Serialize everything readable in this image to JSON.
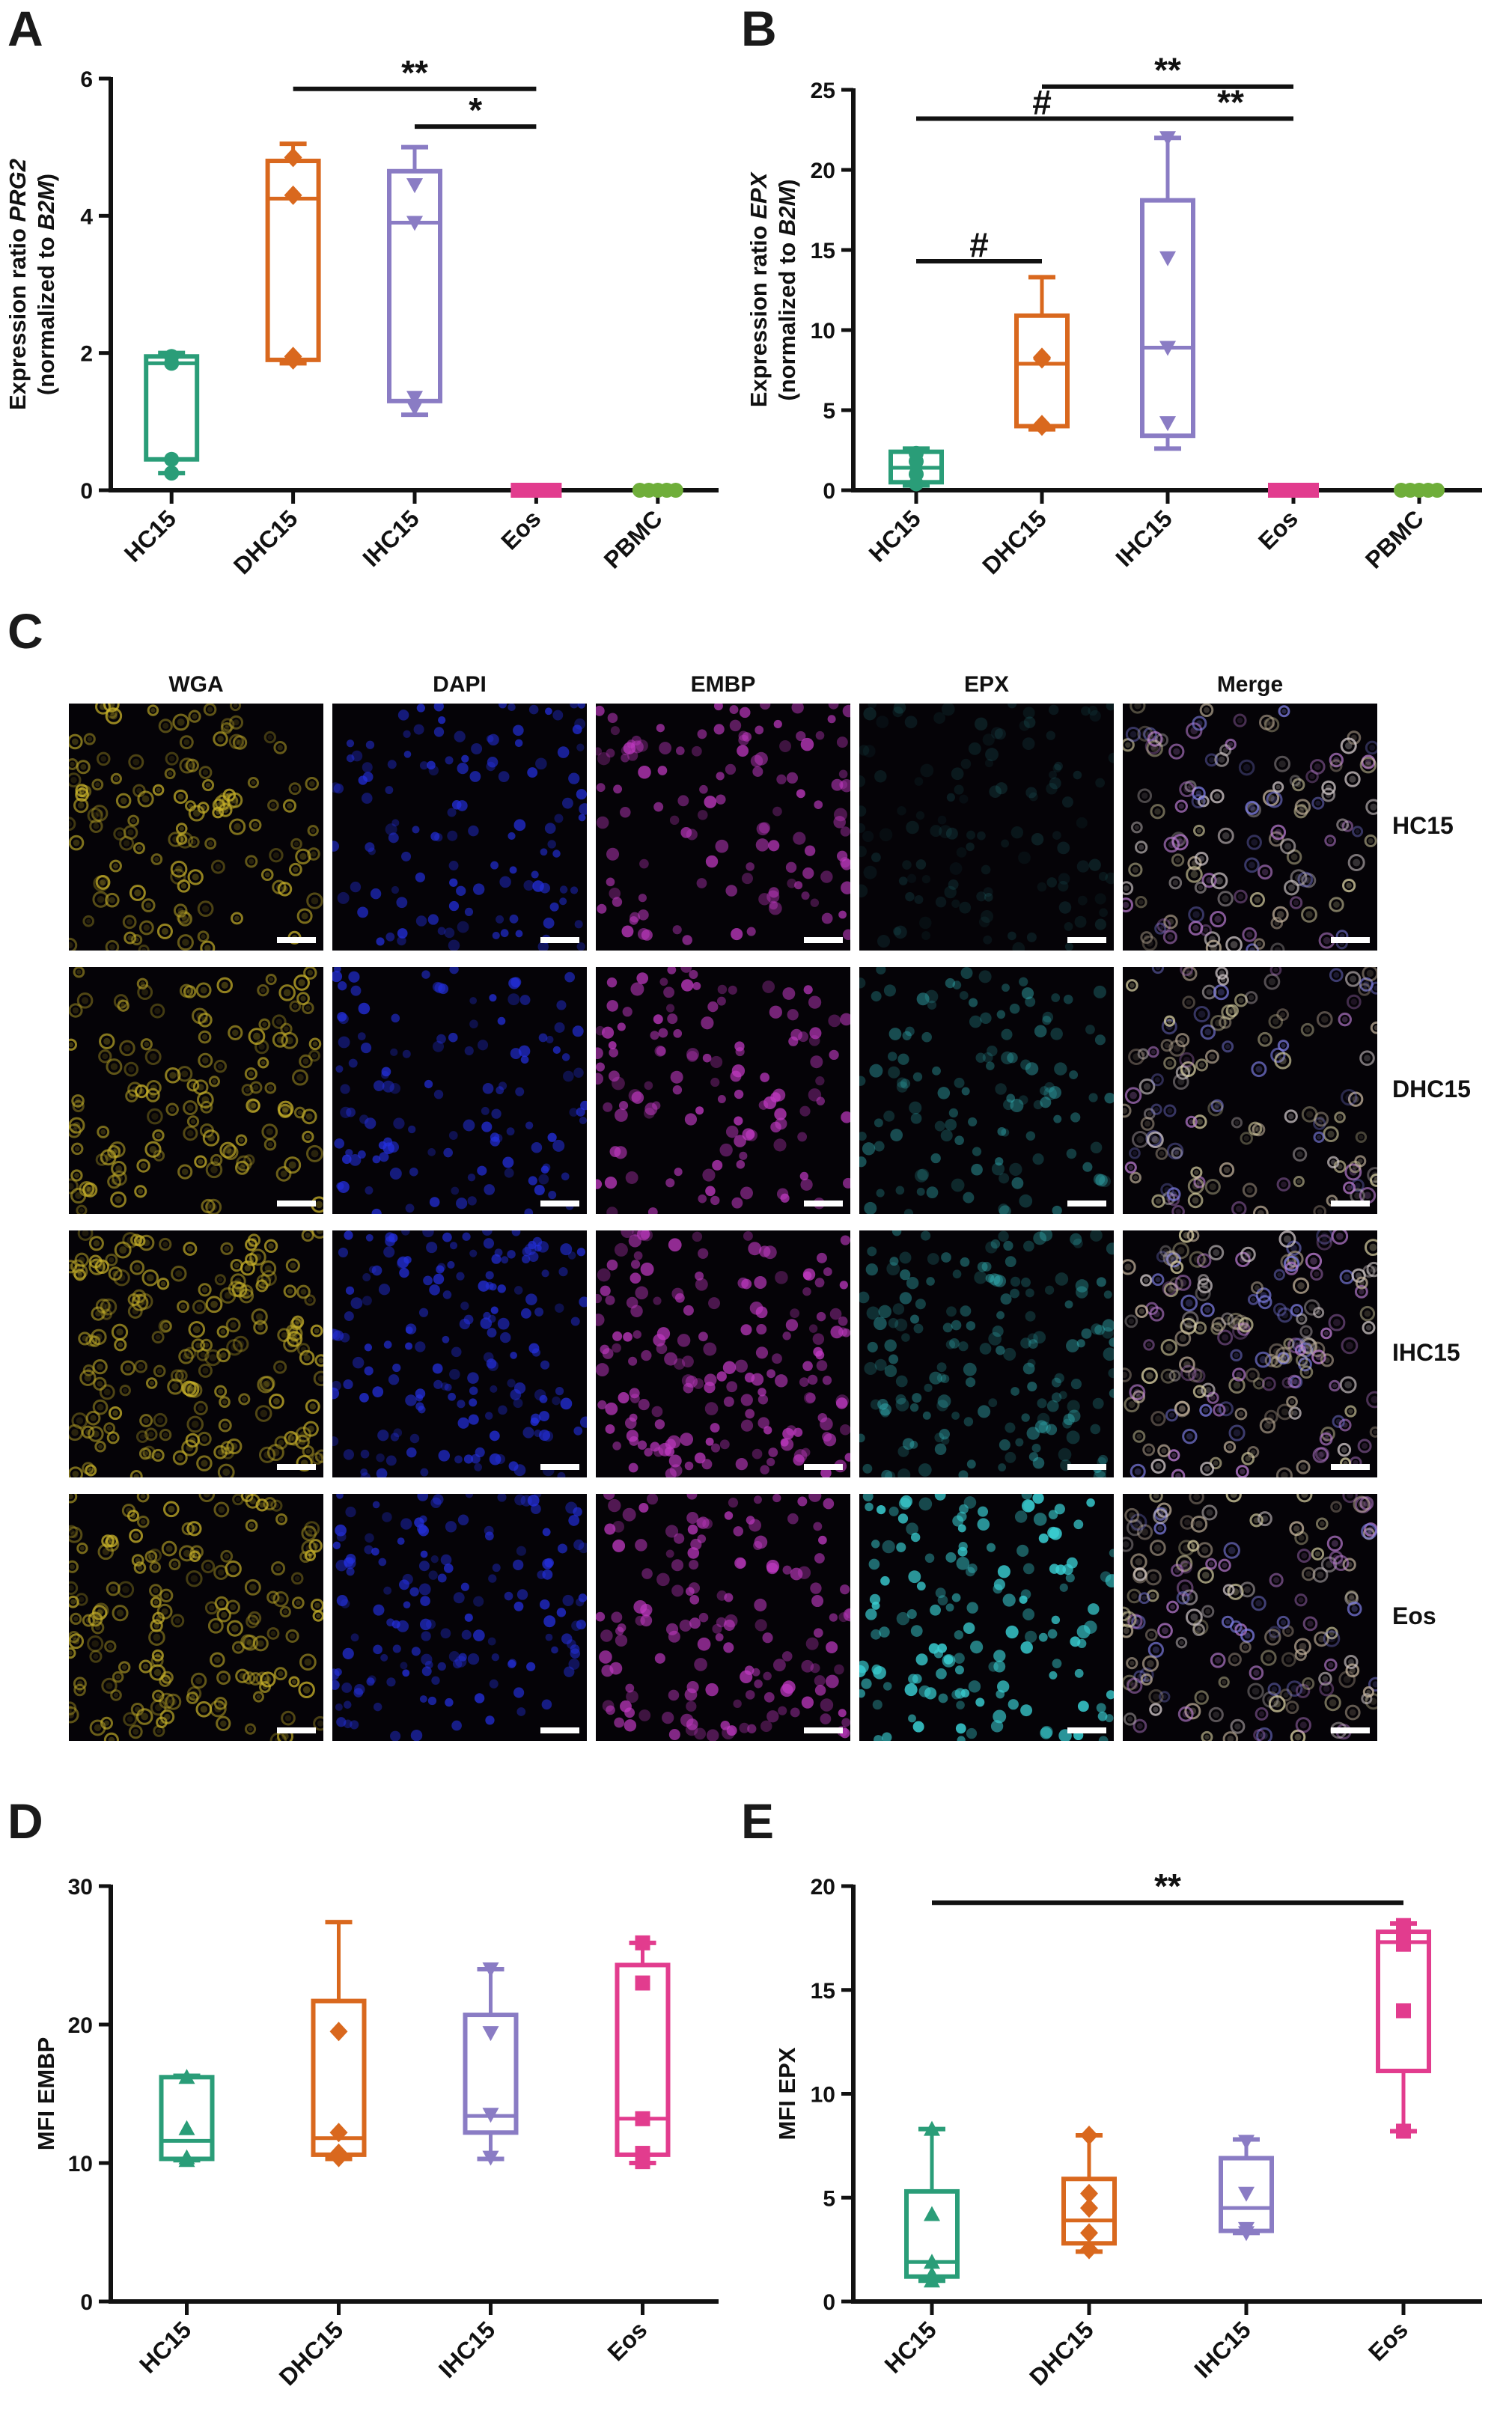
{
  "panels": {
    "A": {
      "letter": "A"
    },
    "B": {
      "letter": "B"
    },
    "C": {
      "letter": "C"
    },
    "D": {
      "letter": "D"
    },
    "E": {
      "letter": "E"
    }
  },
  "colors": {
    "HC15": "#2a9d78",
    "DHC15": "#d9681e",
    "IHC15": "#8a7cc4",
    "Eos": "#e23c8e",
    "PBMC": "#6fae3a",
    "WGA": "#c9b32a",
    "DAPI": "#2430e0",
    "EMBP": "#c23ac4",
    "EPX": "#3ad0d4",
    "Merge": "#d8cfd0"
  },
  "chart_data": [
    {
      "id": "A",
      "type": "box",
      "ylabel_line1_prefix": "Expression ratio ",
      "ylabel_line1_italic": "PRG2",
      "ylabel_line2_prefix": "(normalized to ",
      "ylabel_line2_italic": "B2M",
      "ylabel_line2_suffix": ")",
      "ylim": [
        0,
        6
      ],
      "yticks": [
        0,
        2,
        4,
        6
      ],
      "categories": [
        "HC15",
        "DHC15",
        "IHC15",
        "Eos",
        "PBMC"
      ],
      "series": [
        {
          "category": "HC15",
          "min": 0.25,
          "q1": 0.45,
          "median": 1.85,
          "q3": 1.95,
          "max": 2.0,
          "points": [
            0.25,
            0.45,
            1.85,
            1.95
          ],
          "marker": "circle"
        },
        {
          "category": "DHC15",
          "min": 1.85,
          "q1": 1.9,
          "median": 4.25,
          "q3": 4.8,
          "max": 5.05,
          "points": [
            1.9,
            1.95,
            4.3,
            4.85
          ],
          "marker": "diamond"
        },
        {
          "category": "IHC15",
          "min": 1.1,
          "q1": 1.3,
          "median": 3.9,
          "q3": 4.65,
          "max": 5.0,
          "points": [
            1.2,
            1.35,
            3.9,
            4.45
          ],
          "marker": "triangle-down"
        },
        {
          "category": "Eos",
          "min": 0,
          "q1": 0,
          "median": 0,
          "q3": 0,
          "max": 0,
          "points": [
            0,
            0,
            0,
            0,
            0
          ],
          "marker": "square"
        },
        {
          "category": "PBMC",
          "min": 0,
          "q1": 0,
          "median": 0,
          "q3": 0,
          "max": 0,
          "points": [
            0,
            0,
            0,
            0,
            0
          ],
          "marker": "circle"
        }
      ],
      "significance": [
        {
          "from": "DHC15",
          "to": "Eos",
          "y": 5.85,
          "label": "**"
        },
        {
          "from": "IHC15",
          "to": "Eos",
          "y": 5.3,
          "label": "*"
        }
      ]
    },
    {
      "id": "B",
      "type": "box",
      "ylabel_line1_prefix": "Expression ratio ",
      "ylabel_line1_italic": "EPX",
      "ylabel_line2_prefix": "(normalized to ",
      "ylabel_line2_italic": "B2M",
      "ylabel_line2_suffix": ")",
      "ylim": [
        0,
        25
      ],
      "yticks": [
        0,
        5,
        10,
        15,
        20,
        25
      ],
      "categories": [
        "HC15",
        "DHC15",
        "IHC15",
        "Eos",
        "PBMC"
      ],
      "series": [
        {
          "category": "HC15",
          "min": 0.3,
          "q1": 0.5,
          "median": 1.4,
          "q3": 2.4,
          "max": 2.6,
          "points": [
            0.4,
            1.0,
            1.8,
            2.3
          ],
          "marker": "circle"
        },
        {
          "category": "DHC15",
          "min": 3.8,
          "q1": 4.0,
          "median": 7.9,
          "q3": 10.9,
          "max": 13.3,
          "points": [
            4.0,
            4.1,
            8.2,
            8.3
          ],
          "marker": "diamond"
        },
        {
          "category": "IHC15",
          "min": 2.6,
          "q1": 3.4,
          "median": 8.9,
          "q3": 18.1,
          "max": 22.0,
          "points": [
            4.2,
            8.9,
            14.5,
            22.0
          ],
          "marker": "triangle-down"
        },
        {
          "category": "Eos",
          "min": 0,
          "q1": 0,
          "median": 0,
          "q3": 0,
          "max": 0,
          "points": [
            0,
            0,
            0,
            0,
            0
          ],
          "marker": "square"
        },
        {
          "category": "PBMC",
          "min": 0,
          "q1": 0,
          "median": 0,
          "q3": 0,
          "max": 0,
          "points": [
            0,
            0,
            0,
            0,
            0
          ],
          "marker": "circle"
        }
      ],
      "significance": [
        {
          "from": "DHC15",
          "to": "Eos",
          "y": 25.2,
          "label": "**"
        },
        {
          "from": "HC15",
          "to": "IHC15",
          "y": 23.2,
          "label": "#"
        },
        {
          "from": "IHC15",
          "to": "Eos",
          "y": 23.2,
          "label": "**"
        },
        {
          "from": "HC15",
          "to": "DHC15",
          "y": 14.3,
          "label": "#"
        }
      ]
    },
    {
      "id": "D",
      "type": "box",
      "ylabel": "MFI EMBP",
      "ylim": [
        0,
        30
      ],
      "yticks": [
        0,
        10,
        20,
        30
      ],
      "categories": [
        "HC15",
        "DHC15",
        "IHC15",
        "Eos"
      ],
      "series": [
        {
          "category": "HC15",
          "min": 10.2,
          "q1": 10.3,
          "median": 11.6,
          "q3": 16.2,
          "max": 16.3,
          "points": [
            10.2,
            10.4,
            12.5,
            16.2
          ],
          "marker": "triangle-up"
        },
        {
          "category": "DHC15",
          "min": 10.3,
          "q1": 10.6,
          "median": 11.8,
          "q3": 21.7,
          "max": 27.4,
          "points": [
            10.4,
            10.7,
            12.2,
            19.5
          ],
          "marker": "diamond"
        },
        {
          "category": "IHC15",
          "min": 10.3,
          "q1": 12.2,
          "median": 13.4,
          "q3": 20.7,
          "max": 24.0,
          "points": [
            10.4,
            13.5,
            19.4,
            24.0
          ],
          "marker": "triangle-down"
        },
        {
          "category": "Eos",
          "min": 10.0,
          "q1": 10.6,
          "median": 13.2,
          "q3": 24.3,
          "max": 25.9,
          "points": [
            10.1,
            10.7,
            13.2,
            23.0,
            25.9
          ],
          "marker": "square"
        }
      ],
      "significance": []
    },
    {
      "id": "E",
      "type": "box",
      "ylabel": "MFI EPX",
      "ylim": [
        0,
        20
      ],
      "yticks": [
        0,
        5,
        10,
        15,
        20
      ],
      "categories": [
        "HC15",
        "DHC15",
        "IHC15",
        "Eos"
      ],
      "series": [
        {
          "category": "HC15",
          "min": 1.0,
          "q1": 1.2,
          "median": 1.9,
          "q3": 5.3,
          "max": 8.3,
          "points": [
            1.0,
            1.3,
            1.9,
            4.2,
            8.3
          ],
          "marker": "triangle-up"
        },
        {
          "category": "DHC15",
          "min": 2.4,
          "q1": 2.8,
          "median": 3.9,
          "q3": 5.9,
          "max": 8.0,
          "points": [
            2.5,
            3.3,
            4.5,
            5.2,
            8.0
          ],
          "marker": "diamond"
        },
        {
          "category": "IHC15",
          "min": 3.3,
          "q1": 3.4,
          "median": 4.5,
          "q3": 6.9,
          "max": 7.8,
          "points": [
            3.3,
            3.5,
            5.2,
            7.7
          ],
          "marker": "triangle-down"
        },
        {
          "category": "Eos",
          "min": 8.2,
          "q1": 11.1,
          "median": 17.3,
          "q3": 17.8,
          "max": 18.2,
          "points": [
            8.2,
            14.0,
            17.2,
            17.8,
            18.1
          ],
          "marker": "square"
        }
      ],
      "significance": [
        {
          "from": "HC15",
          "to": "Eos",
          "y": 19.2,
          "label": "**"
        }
      ]
    }
  ],
  "micrograph": {
    "columns": [
      "WGA",
      "DAPI",
      "EMBP",
      "EPX",
      "Merge"
    ],
    "rows": [
      "HC15",
      "DHC15",
      "IHC15",
      "Eos"
    ]
  }
}
